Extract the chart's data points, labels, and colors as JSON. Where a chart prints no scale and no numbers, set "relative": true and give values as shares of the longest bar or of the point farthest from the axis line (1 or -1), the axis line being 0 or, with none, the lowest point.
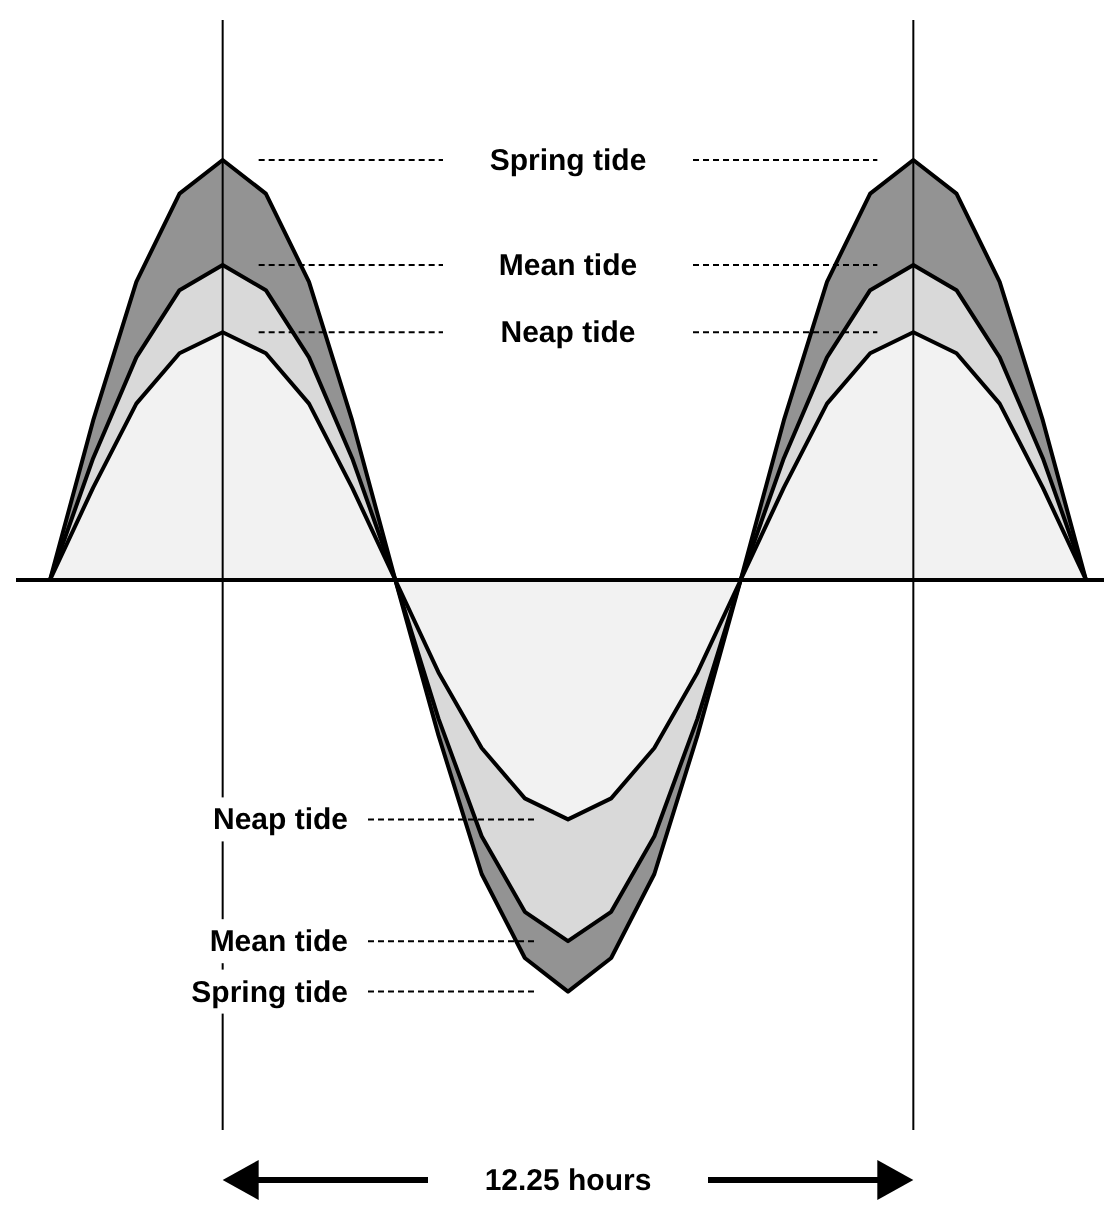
{
  "chart_data": {
    "type": "area",
    "relative": true,
    "categories": [
      null,
      null,
      null,
      null,
      null,
      null,
      null,
      null,
      null,
      null,
      null,
      null,
      null,
      null,
      null,
      null,
      null,
      null,
      null,
      null,
      null,
      null,
      null,
      null,
      null
    ],
    "series": [
      {
        "color": "#939393",
        "values": [
          0,
          0.38,
          0.71,
          0.92,
          1,
          0.92,
          0.71,
          0.38,
          0,
          -0.37,
          -0.7,
          -0.9,
          -0.98,
          -0.9,
          -0.7,
          -0.37,
          0,
          0.38,
          0.71,
          0.92,
          1,
          0.92,
          0.71,
          0.38,
          0
        ]
      },
      {
        "color": "#d9d9d9",
        "values": [
          0,
          0.29,
          0.53,
          0.69,
          0.75,
          0.69,
          0.53,
          0.29,
          0,
          -0.33,
          -0.61,
          -0.79,
          -0.86,
          -0.79,
          -0.61,
          -0.33,
          0,
          0.29,
          0.53,
          0.69,
          0.75,
          0.69,
          0.53,
          0.29,
          0
        ]
      },
      {
        "color": "#f2f2f2",
        "values": [
          0,
          0.22,
          0.42,
          0.54,
          0.59,
          0.54,
          0.42,
          0.22,
          0,
          -0.22,
          -0.4,
          -0.52,
          -0.57,
          -0.52,
          -0.4,
          -0.22,
          0,
          0.22,
          0.42,
          0.54,
          0.59,
          0.54,
          0.42,
          0.22,
          0
        ]
      }
    ],
    "annotations": [
      "Spring tide",
      "Mean tide",
      "Neap tide",
      "Neap tide",
      "Mean tide",
      "Spring tide",
      "12.25 hours"
    ]
  }
}
